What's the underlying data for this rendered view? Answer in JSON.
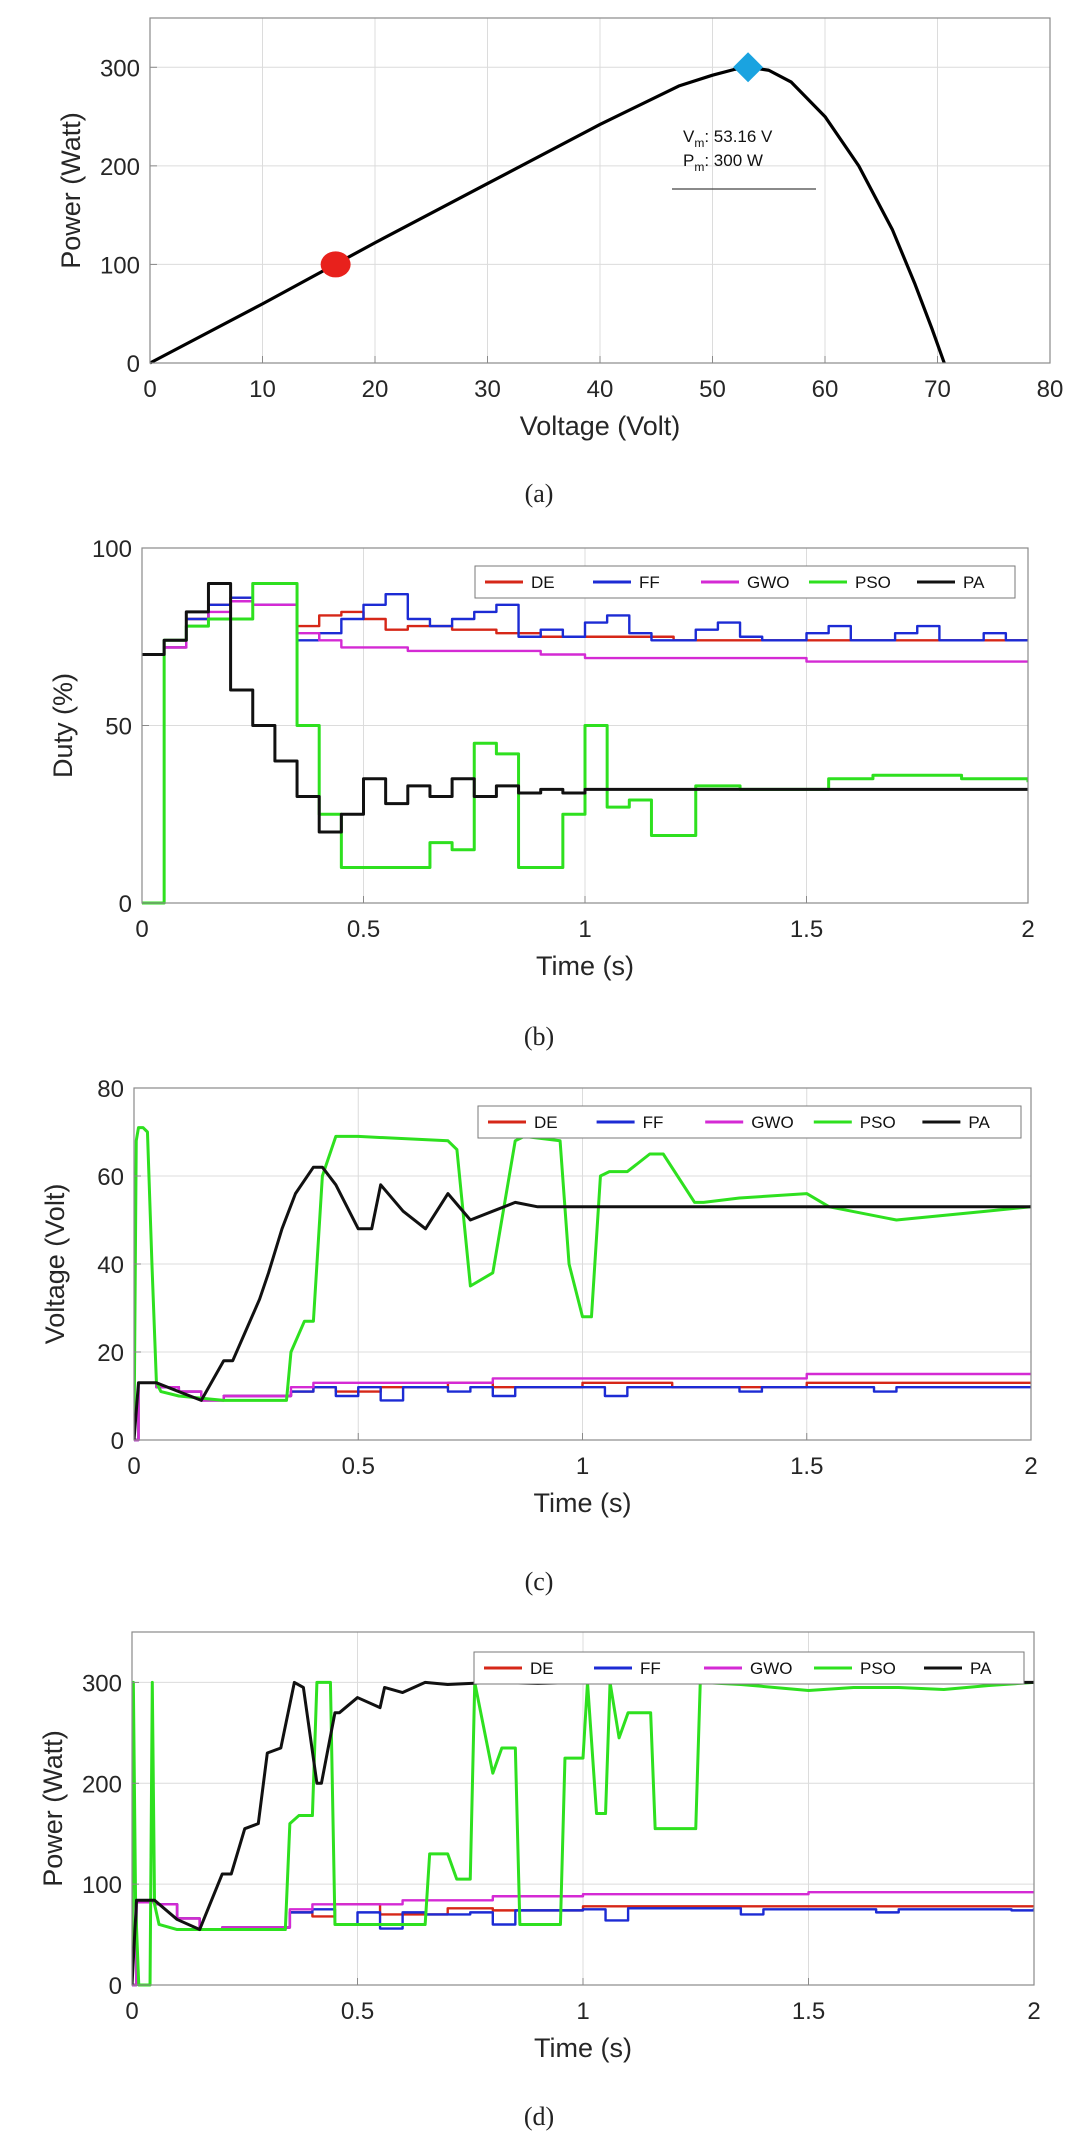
{
  "chart_data": [
    {
      "id": "a",
      "type": "line",
      "caption": "(a)",
      "xlabel": "Voltage (Volt)",
      "ylabel": "Power (Watt)",
      "xlim": [
        0,
        80
      ],
      "ylim": [
        0,
        350
      ],
      "xticks": [
        0,
        10,
        20,
        30,
        40,
        50,
        60,
        70,
        80
      ],
      "yticks": [
        0,
        100,
        200,
        300
      ],
      "grid": true,
      "series": [
        {
          "name": "",
          "color": "#000000",
          "x": [
            0,
            10,
            20,
            30,
            40,
            47,
            50,
            52,
            53.16,
            55,
            57,
            60,
            63,
            66,
            68,
            69.5,
            70.6
          ],
          "y": [
            0,
            60,
            122,
            182,
            242,
            281,
            292,
            298,
            300,
            297,
            285,
            250,
            200,
            135,
            80,
            35,
            0
          ]
        }
      ],
      "markers": [
        {
          "shape": "circle",
          "color": "#e8211c",
          "x": 16.5,
          "y": 100
        },
        {
          "shape": "diamond",
          "color": "#1aa3e0",
          "x": 53.16,
          "y": 300
        }
      ],
      "annotation": {
        "line1_base": "V",
        "line1_sub": "m",
        "line1_rest": ": 53.16 V",
        "line2_base": "P",
        "line2_sub": "m",
        "line2_rest": ": 300 W"
      }
    },
    {
      "id": "b",
      "type": "line",
      "caption": "(b)",
      "xlabel": "Time (s)",
      "ylabel": "Duty (%)",
      "xlim": [
        0,
        2
      ],
      "ylim": [
        0,
        100
      ],
      "xticks": [
        0,
        0.5,
        1,
        1.5,
        2
      ],
      "yticks": [
        0,
        50,
        100
      ],
      "grid": true,
      "legend": "top-right",
      "series": [
        {
          "name": "DE",
          "color": "#d62718",
          "step": true,
          "x": [
            0,
            0.05,
            0.1,
            0.15,
            0.2,
            0.25,
            0.35,
            0.4,
            0.45,
            0.5,
            0.55,
            0.6,
            0.7,
            0.8,
            0.9,
            1.0,
            1.2,
            1.5,
            2.0
          ],
          "y": [
            70,
            72,
            80,
            84,
            86,
            84,
            78,
            81,
            82,
            80,
            77,
            78,
            77,
            76,
            75,
            75,
            74,
            74,
            74
          ]
        },
        {
          "name": "FF",
          "color": "#1c2bd4",
          "step": true,
          "x": [
            0,
            0.05,
            0.1,
            0.15,
            0.2,
            0.25,
            0.35,
            0.4,
            0.45,
            0.5,
            0.55,
            0.6,
            0.65,
            0.7,
            0.75,
            0.8,
            0.85,
            0.9,
            0.95,
            1.0,
            1.05,
            1.1,
            1.15,
            1.25,
            1.3,
            1.35,
            1.4,
            1.5,
            1.55,
            1.6,
            1.7,
            1.75,
            1.8,
            1.9,
            1.95,
            2.0
          ],
          "y": [
            70,
            72,
            80,
            84,
            86,
            84,
            74,
            76,
            80,
            84,
            87,
            80,
            78,
            80,
            82,
            84,
            75,
            77,
            75,
            79,
            81,
            76,
            74,
            77,
            79,
            75,
            74,
            76,
            78,
            74,
            76,
            78,
            74,
            76,
            74,
            74
          ]
        },
        {
          "name": "GWO",
          "color": "#d42ad4",
          "step": true,
          "x": [
            0,
            0.05,
            0.1,
            0.15,
            0.2,
            0.25,
            0.35,
            0.4,
            0.45,
            0.6,
            0.9,
            1.0,
            1.5,
            2.0
          ],
          "y": [
            70,
            72,
            78,
            82,
            85,
            84,
            76,
            74,
            72,
            71,
            70,
            69,
            68,
            68
          ]
        },
        {
          "name": "PSO",
          "color": "#2ee01f",
          "step": true,
          "x": [
            0,
            0.05,
            0.1,
            0.15,
            0.25,
            0.35,
            0.4,
            0.45,
            0.65,
            0.7,
            0.75,
            0.8,
            0.85,
            0.95,
            1.0,
            1.05,
            1.1,
            1.15,
            1.25,
            1.35,
            1.45,
            1.55,
            1.65,
            1.75,
            1.85,
            2.0
          ],
          "y": [
            0,
            74,
            78,
            80,
            90,
            50,
            25,
            10,
            17,
            15,
            45,
            42,
            10,
            25,
            50,
            27,
            29,
            19,
            33,
            32,
            32,
            35,
            36,
            36,
            35,
            34
          ]
        },
        {
          "name": "PA",
          "color": "#111111",
          "step": true,
          "x": [
            0,
            0.05,
            0.1,
            0.15,
            0.2,
            0.25,
            0.3,
            0.35,
            0.4,
            0.45,
            0.5,
            0.55,
            0.6,
            0.65,
            0.7,
            0.75,
            0.8,
            0.85,
            0.9,
            0.95,
            1.0,
            1.2,
            1.5,
            2.0
          ],
          "y": [
            70,
            74,
            82,
            90,
            60,
            50,
            40,
            30,
            20,
            25,
            35,
            28,
            33,
            30,
            35,
            30,
            33,
            31,
            32,
            31,
            32,
            32,
            32,
            32
          ]
        }
      ]
    },
    {
      "id": "c",
      "type": "line",
      "caption": "(c)",
      "xlabel": "Time (s)",
      "ylabel": "Voltage (Volt)",
      "xlim": [
        0,
        2
      ],
      "ylim": [
        0,
        80
      ],
      "xticks": [
        0,
        0.5,
        1,
        1.5,
        2
      ],
      "yticks": [
        0,
        20,
        40,
        60,
        80
      ],
      "grid": true,
      "legend": "top-right",
      "series": [
        {
          "name": "DE",
          "color": "#d62718",
          "step": true,
          "x": [
            0,
            0.01,
            0.05,
            0.1,
            0.15,
            0.2,
            0.35,
            0.4,
            0.45,
            0.55,
            0.7,
            0.8,
            1.0,
            1.2,
            1.5,
            2.0
          ],
          "y": [
            0,
            13,
            12,
            11,
            9,
            10,
            11,
            12,
            11,
            12,
            13,
            12,
            13,
            12,
            13,
            13
          ]
        },
        {
          "name": "FF",
          "color": "#1c2bd4",
          "step": true,
          "x": [
            0,
            0.01,
            0.05,
            0.1,
            0.15,
            0.2,
            0.35,
            0.4,
            0.45,
            0.5,
            0.55,
            0.6,
            0.65,
            0.7,
            0.75,
            0.8,
            0.85,
            0.95,
            1.0,
            1.05,
            1.1,
            1.3,
            1.35,
            1.4,
            1.6,
            1.65,
            1.7,
            1.9,
            1.95,
            2.0
          ],
          "y": [
            0,
            13,
            12,
            11,
            9,
            10,
            11,
            12,
            10,
            12,
            9,
            12,
            12,
            11,
            12,
            10,
            12,
            12,
            12,
            10,
            12,
            12,
            11,
            12,
            12,
            11,
            12,
            12,
            12,
            12
          ]
        },
        {
          "name": "GWO",
          "color": "#d42ad4",
          "step": true,
          "x": [
            0,
            0.01,
            0.05,
            0.1,
            0.15,
            0.2,
            0.35,
            0.4,
            0.6,
            0.8,
            1.0,
            1.5,
            2.0
          ],
          "y": [
            0,
            13,
            12,
            11,
            9,
            10,
            12,
            13,
            13,
            14,
            14,
            15,
            15
          ]
        },
        {
          "name": "PSO",
          "color": "#2ee01f",
          "step": false,
          "x": [
            0,
            0.005,
            0.01,
            0.02,
            0.03,
            0.04,
            0.05,
            0.06,
            0.1,
            0.2,
            0.3,
            0.34,
            0.35,
            0.38,
            0.4,
            0.42,
            0.45,
            0.5,
            0.7,
            0.72,
            0.75,
            0.8,
            0.85,
            0.87,
            0.95,
            0.97,
            1.0,
            1.02,
            1.04,
            1.06,
            1.1,
            1.15,
            1.18,
            1.25,
            1.27,
            1.35,
            1.5,
            1.55,
            1.6,
            1.7,
            1.8,
            1.9,
            2.0
          ],
          "y": [
            0,
            68,
            71,
            71,
            70,
            40,
            13,
            11,
            10,
            9,
            9,
            9,
            20,
            27,
            27,
            60,
            69,
            69,
            68,
            66,
            35,
            38,
            68,
            69,
            68,
            40,
            28,
            28,
            60,
            61,
            61,
            65,
            65,
            54,
            54,
            55,
            56,
            53,
            52,
            50,
            51,
            52,
            53
          ]
        },
        {
          "name": "PA",
          "color": "#111111",
          "step": false,
          "x": [
            0,
            0.01,
            0.05,
            0.1,
            0.15,
            0.2,
            0.22,
            0.25,
            0.28,
            0.3,
            0.33,
            0.36,
            0.4,
            0.42,
            0.45,
            0.5,
            0.53,
            0.55,
            0.6,
            0.65,
            0.7,
            0.75,
            0.8,
            0.85,
            0.9,
            0.95,
            1.0,
            1.2,
            1.5,
            2.0
          ],
          "y": [
            0,
            13,
            13,
            11,
            9,
            18,
            18,
            25,
            32,
            38,
            48,
            56,
            62,
            62,
            58,
            48,
            48,
            58,
            52,
            48,
            56,
            50,
            52,
            54,
            53,
            53,
            53,
            53,
            53,
            53
          ]
        }
      ]
    },
    {
      "id": "d",
      "type": "line",
      "caption": "(d)",
      "xlabel": "Time (s)",
      "ylabel": "Power (Watt)",
      "xlim": [
        0,
        2
      ],
      "ylim": [
        0,
        350
      ],
      "xticks": [
        0,
        0.5,
        1,
        1.5,
        2
      ],
      "yticks": [
        0,
        100,
        200,
        300
      ],
      "grid": true,
      "legend": "top-right",
      "series": [
        {
          "name": "DE",
          "color": "#d62718",
          "step": true,
          "x": [
            0,
            0.01,
            0.05,
            0.1,
            0.15,
            0.2,
            0.35,
            0.4,
            0.45,
            0.55,
            0.7,
            0.8,
            1.0,
            1.5,
            2.0
          ],
          "y": [
            0,
            82,
            80,
            66,
            55,
            57,
            72,
            68,
            80,
            70,
            76,
            74,
            78,
            78,
            78
          ]
        },
        {
          "name": "FF",
          "color": "#1c2bd4",
          "step": true,
          "x": [
            0,
            0.01,
            0.05,
            0.1,
            0.15,
            0.2,
            0.35,
            0.4,
            0.45,
            0.5,
            0.55,
            0.6,
            0.65,
            0.75,
            0.8,
            0.85,
            1.0,
            1.05,
            1.1,
            1.3,
            1.35,
            1.4,
            1.6,
            1.65,
            1.7,
            1.9,
            1.95,
            2.0
          ],
          "y": [
            0,
            82,
            80,
            66,
            55,
            57,
            72,
            75,
            60,
            72,
            56,
            72,
            70,
            72,
            60,
            74,
            75,
            64,
            76,
            76,
            70,
            75,
            75,
            72,
            75,
            75,
            74,
            76
          ]
        },
        {
          "name": "GWO",
          "color": "#d42ad4",
          "step": true,
          "x": [
            0,
            0.01,
            0.05,
            0.1,
            0.15,
            0.2,
            0.35,
            0.4,
            0.6,
            0.8,
            1.0,
            1.5,
            2.0
          ],
          "y": [
            0,
            82,
            80,
            66,
            55,
            57,
            75,
            80,
            84,
            88,
            90,
            92,
            92
          ]
        },
        {
          "name": "PSO",
          "color": "#2ee01f",
          "step": false,
          "x": [
            0,
            0.003,
            0.008,
            0.015,
            0.02,
            0.04,
            0.045,
            0.05,
            0.06,
            0.1,
            0.15,
            0.2,
            0.3,
            0.34,
            0.35,
            0.37,
            0.4,
            0.41,
            0.44,
            0.45,
            0.5,
            0.6,
            0.65,
            0.66,
            0.7,
            0.72,
            0.75,
            0.76,
            0.8,
            0.82,
            0.85,
            0.86,
            0.95,
            0.96,
            1.0,
            1.01,
            1.03,
            1.05,
            1.06,
            1.08,
            1.1,
            1.15,
            1.16,
            1.25,
            1.26,
            1.35,
            1.5,
            1.6,
            1.7,
            1.8,
            1.9,
            2.0
          ],
          "y": [
            0,
            300,
            80,
            0,
            0,
            0,
            300,
            80,
            60,
            55,
            55,
            55,
            55,
            55,
            160,
            168,
            168,
            300,
            300,
            60,
            60,
            60,
            60,
            130,
            130,
            105,
            105,
            300,
            210,
            235,
            235,
            60,
            60,
            225,
            225,
            300,
            170,
            170,
            300,
            245,
            270,
            270,
            155,
            155,
            300,
            298,
            292,
            295,
            295,
            293,
            297,
            300
          ]
        },
        {
          "name": "PA",
          "color": "#111111",
          "step": false,
          "x": [
            0,
            0.01,
            0.05,
            0.1,
            0.15,
            0.2,
            0.22,
            0.25,
            0.28,
            0.3,
            0.33,
            0.36,
            0.38,
            0.41,
            0.42,
            0.45,
            0.46,
            0.5,
            0.55,
            0.56,
            0.6,
            0.65,
            0.7,
            0.8,
            0.9,
            1.0,
            1.5,
            2.0
          ],
          "y": [
            0,
            84,
            84,
            65,
            55,
            110,
            110,
            155,
            160,
            230,
            235,
            300,
            295,
            200,
            200,
            270,
            270,
            285,
            275,
            295,
            290,
            300,
            298,
            300,
            299,
            300,
            300,
            300
          ]
        }
      ]
    }
  ]
}
